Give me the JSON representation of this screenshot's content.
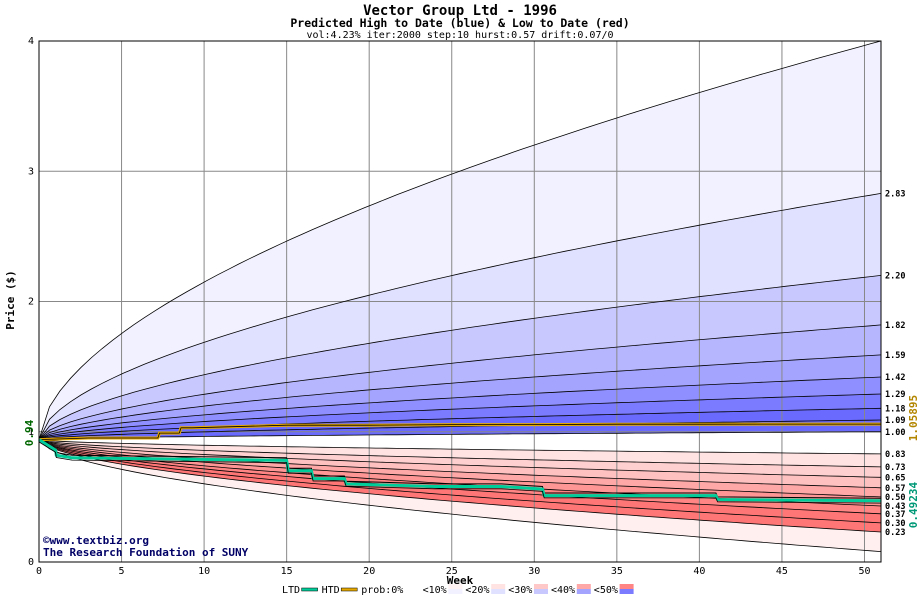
{
  "chart_data": {
    "type": "area",
    "title": "Vector Group Ltd - 1996",
    "subtitle": "Predicted High to Date (blue) &  Low to Date (red)",
    "params": "vol:4.23% iter:2000 step:10 hurst:0.57 drift:0.07/0",
    "xlabel": "Week",
    "ylabel": "Price ($)",
    "xlim": [
      0,
      51
    ],
    "ylim": [
      0,
      4
    ],
    "x_ticks": [
      0,
      5,
      10,
      15,
      20,
      25,
      30,
      35,
      40,
      45,
      50
    ],
    "y_ticks": [
      0,
      1,
      2,
      3,
      4
    ],
    "start_value": 0.94,
    "start_label": "0.94",
    "high_quantile_labels": [
      "2.83",
      "2.20",
      "1.82",
      "1.59",
      "1.42",
      "1.29",
      "1.18",
      "1.09",
      "1.00"
    ],
    "high_quantile_values": [
      2.83,
      2.2,
      1.82,
      1.59,
      1.42,
      1.29,
      1.18,
      1.09,
      1.0
    ],
    "low_quantile_labels": [
      "0.83",
      "0.73",
      "0.65",
      "0.57",
      "0.50",
      "0.43",
      "0.37",
      "0.30",
      "0.23"
    ],
    "low_quantile_values": [
      0.83,
      0.73,
      0.65,
      0.57,
      0.5,
      0.43,
      0.37,
      0.3,
      0.23
    ],
    "extreme_high_final": 4.0,
    "extreme_low_final": 0.08,
    "htd_final_label": "1.05895",
    "htd_final_value": 1.05895,
    "ltd_final_label": "0.49234",
    "ltd_final_value": 0.49234,
    "htd_series": {
      "name": "HTD",
      "x": [
        0,
        3,
        6,
        7.2,
        7.3,
        8.5,
        8.6,
        9.3,
        15,
        20,
        25,
        30,
        35,
        40,
        45,
        51
      ],
      "y": [
        0.94,
        0.952,
        0.952,
        0.952,
        0.99,
        0.99,
        1.03,
        1.03,
        1.05,
        1.05,
        1.055,
        1.055,
        1.058,
        1.058,
        1.059,
        1.059
      ]
    },
    "ltd_series": {
      "name": "LTD",
      "x": [
        0,
        1,
        1.05,
        2,
        15,
        15.1,
        16.5,
        16.6,
        18.5,
        18.6,
        24,
        28,
        30.5,
        30.6,
        36,
        41,
        41.1,
        51
      ],
      "y": [
        0.94,
        0.87,
        0.84,
        0.82,
        0.8,
        0.72,
        0.72,
        0.66,
        0.66,
        0.62,
        0.6,
        0.6,
        0.58,
        0.53,
        0.53,
        0.53,
        0.5,
        0.49
      ],
      "x2": [
        0,
        1,
        1.05,
        2,
        15,
        15.1,
        16.5,
        16.6,
        18.5,
        18.6,
        24,
        28,
        30.5,
        30.6,
        36,
        41,
        41.1,
        51
      ],
      "y2": [
        0.94,
        0.86,
        0.82,
        0.8,
        0.78,
        0.7,
        0.7,
        0.64,
        0.64,
        0.6,
        0.58,
        0.58,
        0.56,
        0.51,
        0.51,
        0.51,
        0.48,
        0.47
      ]
    },
    "footer_line1": "©www.textbiz.org",
    "footer_line2": "The Research Foundation of SUNY",
    "legend": [
      {
        "label": "LTD",
        "kind": "line",
        "color": "#00cc99"
      },
      {
        "label": "HTD",
        "kind": "line",
        "color": "#e6a800"
      },
      {
        "label": "prob:0%",
        "kind": "swatch",
        "colors": [
          "#ffffff",
          "#ffffff"
        ]
      },
      {
        "label": "<10%",
        "kind": "swatch",
        "colors": [
          "#fff3f3",
          "#f1f1ff"
        ]
      },
      {
        "label": "<20%",
        "kind": "swatch",
        "colors": [
          "#ffe3e3",
          "#e0e0ff"
        ]
      },
      {
        "label": "<30%",
        "kind": "swatch",
        "colors": [
          "#ffc8c8",
          "#c8c8ff"
        ]
      },
      {
        "label": "<40%",
        "kind": "swatch",
        "colors": [
          "#ffa8a8",
          "#a4a4ff"
        ]
      },
      {
        "label": "<50%",
        "kind": "swatch",
        "colors": [
          "#ff8484",
          "#7b7bff"
        ]
      }
    ],
    "colors": {
      "blue_bands": [
        "#f1f1ff",
        "#e0e0ff",
        "#c8c8ff",
        "#b6b6ff",
        "#a4a4ff",
        "#8f8fff",
        "#7b7bff",
        "#6a6aff",
        "#6a6aff"
      ],
      "red_bands": [
        "#ffefef",
        "#ffe3e3",
        "#ffd0d0",
        "#ffc0c0",
        "#ffa8a8",
        "#ff9696",
        "#ff8484",
        "#ff7676",
        "#ff7676"
      ],
      "htd_line": "#e6a800",
      "ltd_line": "#00cc99",
      "grid": "#888888",
      "htd_label": "#b38600",
      "ltd_label": "#009977"
    }
  }
}
